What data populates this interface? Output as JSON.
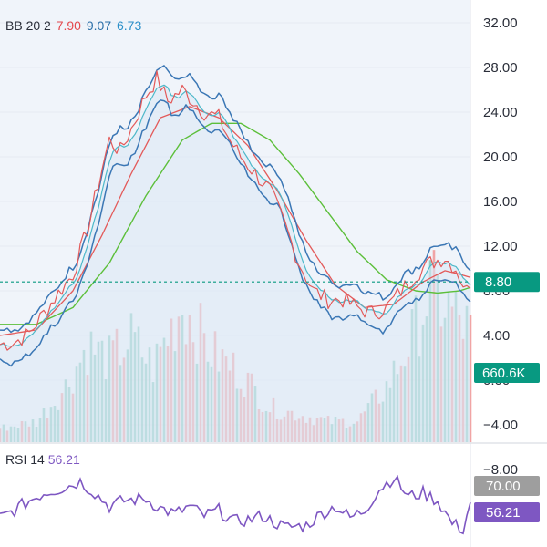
{
  "legend_bb": {
    "name": "BB 20 2",
    "basis": "7.90",
    "upper": "9.07",
    "lower": "6.73",
    "basis_color": "#e5484d",
    "upper_color": "#2b6fa8",
    "lower_color": "#2b8fc9"
  },
  "legend_rsi": {
    "name": "RSI 14",
    "value": "56.21",
    "color": "#7e57c2"
  },
  "price_tag": {
    "label": "8.80",
    "color": "#089981"
  },
  "volume_tag": {
    "label": "660.6K",
    "color": "#089981"
  },
  "rsi_level_tag": {
    "label": "70.00",
    "color": "#9e9e9e"
  },
  "rsi_value_tag": {
    "label": "56.21",
    "color": "#7e57c2"
  },
  "colors": {
    "price": "#3b77b5",
    "sma_short": "#4db8c9",
    "ma_mid": "#e35a5a",
    "ma_long": "#5cbf3a",
    "vol_up": "#70c0b0",
    "vol_down": "#f08a8a"
  },
  "chart_data": {
    "type": "line",
    "y_axis": {
      "ticks": [
        "32.00",
        "28.00",
        "24.00",
        "20.00",
        "16.00",
        "12.00",
        "8.00",
        "4.00",
        "0.00",
        "−4.00",
        "−8.00"
      ],
      "values": [
        32,
        28,
        24,
        20,
        16,
        12,
        8,
        4,
        0,
        -4,
        -8
      ],
      "range": [
        -8,
        33
      ]
    },
    "x_count": 130,
    "price_keys": [
      [
        0,
        3.2
      ],
      [
        4,
        3.4
      ],
      [
        8,
        4.2
      ],
      [
        12,
        6.0
      ],
      [
        16,
        7.8
      ],
      [
        20,
        9.5
      ],
      [
        24,
        13.5
      ],
      [
        28,
        19.0
      ],
      [
        30,
        21.5
      ],
      [
        33,
        20.5
      ],
      [
        36,
        22.5
      ],
      [
        40,
        25.5
      ],
      [
        43,
        27.0
      ],
      [
        46,
        25.0
      ],
      [
        50,
        26.0
      ],
      [
        53,
        25.0
      ],
      [
        56,
        24.0
      ],
      [
        60,
        23.5
      ],
      [
        63,
        21.5
      ],
      [
        66,
        20.0
      ],
      [
        70,
        18.5
      ],
      [
        74,
        17.0
      ],
      [
        78,
        14.0
      ],
      [
        82,
        10.5
      ],
      [
        86,
        8.0
      ],
      [
        90,
        7.2
      ],
      [
        94,
        7.2
      ],
      [
        98,
        6.5
      ],
      [
        102,
        6.0
      ],
      [
        106,
        6.5
      ],
      [
        110,
        8.0
      ],
      [
        114,
        9.5
      ],
      [
        118,
        10.5
      ],
      [
        122,
        11.0
      ],
      [
        125,
        10.0
      ],
      [
        128,
        8.0
      ],
      [
        129,
        8.8
      ]
    ],
    "bb_upper_offset": 1.2,
    "bb_lower_offset": -1.2,
    "ma_long_keys": [
      [
        0,
        5.0
      ],
      [
        10,
        5.0
      ],
      [
        20,
        6.5
      ],
      [
        30,
        10.5
      ],
      [
        40,
        16.5
      ],
      [
        50,
        21.5
      ],
      [
        58,
        23.0
      ],
      [
        66,
        23.0
      ],
      [
        74,
        21.5
      ],
      [
        82,
        18.5
      ],
      [
        90,
        15.0
      ],
      [
        98,
        11.5
      ],
      [
        106,
        9.0
      ],
      [
        114,
        8.0
      ],
      [
        120,
        7.8
      ],
      [
        126,
        8.0
      ],
      [
        129,
        8.3
      ]
    ],
    "ma_mid_keys": [
      [
        0,
        4.0
      ],
      [
        10,
        4.5
      ],
      [
        20,
        8.0
      ],
      [
        28,
        13.0
      ],
      [
        36,
        18.5
      ],
      [
        44,
        23.5
      ],
      [
        52,
        24.5
      ],
      [
        60,
        23.5
      ],
      [
        68,
        21.0
      ],
      [
        76,
        17.0
      ],
      [
        84,
        12.5
      ],
      [
        92,
        8.5
      ],
      [
        100,
        6.5
      ],
      [
        108,
        6.8
      ],
      [
        116,
        8.8
      ],
      [
        122,
        9.8
      ],
      [
        126,
        9.5
      ],
      [
        129,
        9.2
      ]
    ],
    "volume_keys": [
      [
        0,
        0.2
      ],
      [
        10,
        0.3
      ],
      [
        18,
        0.8
      ],
      [
        24,
        1.4
      ],
      [
        30,
        1.2
      ],
      [
        36,
        1.5
      ],
      [
        42,
        1.1
      ],
      [
        50,
        2.0
      ],
      [
        58,
        1.3
      ],
      [
        66,
        1.0
      ],
      [
        74,
        0.5
      ],
      [
        82,
        0.4
      ],
      [
        90,
        0.3
      ],
      [
        98,
        0.3
      ],
      [
        106,
        0.8
      ],
      [
        112,
        1.4
      ],
      [
        118,
        2.2
      ],
      [
        124,
        1.9
      ],
      [
        129,
        1.6
      ]
    ],
    "rsi_keys": [
      [
        0,
        40
      ],
      [
        4,
        48
      ],
      [
        8,
        58
      ],
      [
        12,
        66
      ],
      [
        18,
        72
      ],
      [
        22,
        78
      ],
      [
        26,
        66
      ],
      [
        30,
        52
      ],
      [
        34,
        58
      ],
      [
        40,
        60
      ],
      [
        44,
        50
      ],
      [
        48,
        44
      ],
      [
        52,
        52
      ],
      [
        56,
        42
      ],
      [
        60,
        48
      ],
      [
        64,
        36
      ],
      [
        68,
        38
      ],
      [
        72,
        42
      ],
      [
        78,
        30
      ],
      [
        84,
        32
      ],
      [
        88,
        44
      ],
      [
        92,
        52
      ],
      [
        96,
        40
      ],
      [
        100,
        48
      ],
      [
        104,
        70
      ],
      [
        108,
        82
      ],
      [
        112,
        62
      ],
      [
        116,
        66
      ],
      [
        120,
        58
      ],
      [
        124,
        34
      ],
      [
        127,
        28
      ],
      [
        129,
        56.21
      ]
    ],
    "rsi_ticks": {
      "level": 70
    },
    "grid": true
  }
}
